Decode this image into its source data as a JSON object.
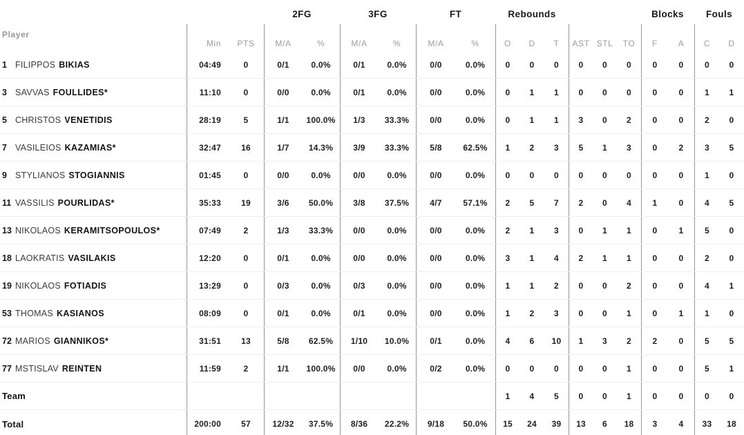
{
  "header": {
    "groups": {
      "fg2": "2FG",
      "fg3": "3FG",
      "ft": "FT",
      "rebounds": "Rebounds",
      "blocks": "Blocks",
      "fouls": "Fouls"
    },
    "columns": {
      "player": "Player",
      "min": "Min",
      "pts": "PTS",
      "fg2_ma": "M/A",
      "fg2_pct": "%",
      "fg3_ma": "M/A",
      "fg3_pct": "%",
      "ft_ma": "M/A",
      "ft_pct": "%",
      "reb_o": "O",
      "reb_d": "D",
      "reb_t": "T",
      "ast": "AST",
      "stl": "STL",
      "to": "TO",
      "blk_f": "F",
      "blk_a": "A",
      "foul_c": "C",
      "foul_d": "D"
    }
  },
  "colors": {
    "header_text": "#9b9b9f",
    "value_text": "#202022",
    "vertical_line": "#949494",
    "horizontal_line": "#efefef"
  },
  "table": {
    "rows": [
      {
        "number": "1",
        "first": "FILIPPOS",
        "last": "BIKIAS",
        "min": "04:49",
        "pts": "0",
        "fg2_ma": "0/1",
        "fg2_pct": "0.0%",
        "fg3_ma": "0/1",
        "fg3_pct": "0.0%",
        "ft_ma": "0/0",
        "ft_pct": "0.0%",
        "reb_o": "0",
        "reb_d": "0",
        "reb_t": "0",
        "ast": "0",
        "stl": "0",
        "to": "0",
        "blk_f": "0",
        "blk_a": "0",
        "foul_c": "0",
        "foul_d": "0"
      },
      {
        "number": "3",
        "first": "SAVVAS",
        "last": "FOULLIDES*",
        "min": "11:10",
        "pts": "0",
        "fg2_ma": "0/0",
        "fg2_pct": "0.0%",
        "fg3_ma": "0/1",
        "fg3_pct": "0.0%",
        "ft_ma": "0/0",
        "ft_pct": "0.0%",
        "reb_o": "0",
        "reb_d": "1",
        "reb_t": "1",
        "ast": "0",
        "stl": "0",
        "to": "0",
        "blk_f": "0",
        "blk_a": "0",
        "foul_c": "1",
        "foul_d": "1"
      },
      {
        "number": "5",
        "first": "CHRISTOS",
        "last": "VENETIDIS",
        "min": "28:19",
        "pts": "5",
        "fg2_ma": "1/1",
        "fg2_pct": "100.0%",
        "fg3_ma": "1/3",
        "fg3_pct": "33.3%",
        "ft_ma": "0/0",
        "ft_pct": "0.0%",
        "reb_o": "0",
        "reb_d": "1",
        "reb_t": "1",
        "ast": "3",
        "stl": "0",
        "to": "2",
        "blk_f": "0",
        "blk_a": "0",
        "foul_c": "2",
        "foul_d": "0"
      },
      {
        "number": "7",
        "first": "VASILEIOS",
        "last": "KAZAMIAS*",
        "min": "32:47",
        "pts": "16",
        "fg2_ma": "1/7",
        "fg2_pct": "14.3%",
        "fg3_ma": "3/9",
        "fg3_pct": "33.3%",
        "ft_ma": "5/8",
        "ft_pct": "62.5%",
        "reb_o": "1",
        "reb_d": "2",
        "reb_t": "3",
        "ast": "5",
        "stl": "1",
        "to": "3",
        "blk_f": "0",
        "blk_a": "2",
        "foul_c": "3",
        "foul_d": "5"
      },
      {
        "number": "9",
        "first": "STYLIANOS",
        "last": "STOGIANNIS",
        "min": "01:45",
        "pts": "0",
        "fg2_ma": "0/0",
        "fg2_pct": "0.0%",
        "fg3_ma": "0/0",
        "fg3_pct": "0.0%",
        "ft_ma": "0/0",
        "ft_pct": "0.0%",
        "reb_o": "0",
        "reb_d": "0",
        "reb_t": "0",
        "ast": "0",
        "stl": "0",
        "to": "0",
        "blk_f": "0",
        "blk_a": "0",
        "foul_c": "1",
        "foul_d": "0"
      },
      {
        "number": "11",
        "first": "VASSILIS",
        "last": "POURLIDAS*",
        "min": "35:33",
        "pts": "19",
        "fg2_ma": "3/6",
        "fg2_pct": "50.0%",
        "fg3_ma": "3/8",
        "fg3_pct": "37.5%",
        "ft_ma": "4/7",
        "ft_pct": "57.1%",
        "reb_o": "2",
        "reb_d": "5",
        "reb_t": "7",
        "ast": "2",
        "stl": "0",
        "to": "4",
        "blk_f": "1",
        "blk_a": "0",
        "foul_c": "4",
        "foul_d": "5"
      },
      {
        "number": "13",
        "first": "NIKOLAOS",
        "last": "KERAMITSOPOULOS*",
        "min": "07:49",
        "pts": "2",
        "fg2_ma": "1/3",
        "fg2_pct": "33.3%",
        "fg3_ma": "0/0",
        "fg3_pct": "0.0%",
        "ft_ma": "0/0",
        "ft_pct": "0.0%",
        "reb_o": "2",
        "reb_d": "1",
        "reb_t": "3",
        "ast": "0",
        "stl": "1",
        "to": "1",
        "blk_f": "0",
        "blk_a": "1",
        "foul_c": "5",
        "foul_d": "0"
      },
      {
        "number": "18",
        "first": "LAOKRATIS",
        "last": "VASILAKIS",
        "min": "12:20",
        "pts": "0",
        "fg2_ma": "0/1",
        "fg2_pct": "0.0%",
        "fg3_ma": "0/0",
        "fg3_pct": "0.0%",
        "ft_ma": "0/0",
        "ft_pct": "0.0%",
        "reb_o": "3",
        "reb_d": "1",
        "reb_t": "4",
        "ast": "2",
        "stl": "1",
        "to": "1",
        "blk_f": "0",
        "blk_a": "0",
        "foul_c": "2",
        "foul_d": "0"
      },
      {
        "number": "19",
        "first": "NIKOLAOS",
        "last": "FOTIADIS",
        "min": "13:29",
        "pts": "0",
        "fg2_ma": "0/3",
        "fg2_pct": "0.0%",
        "fg3_ma": "0/3",
        "fg3_pct": "0.0%",
        "ft_ma": "0/0",
        "ft_pct": "0.0%",
        "reb_o": "1",
        "reb_d": "1",
        "reb_t": "2",
        "ast": "0",
        "stl": "0",
        "to": "2",
        "blk_f": "0",
        "blk_a": "0",
        "foul_c": "4",
        "foul_d": "1"
      },
      {
        "number": "53",
        "first": "THOMAS",
        "last": "KASIANOS",
        "min": "08:09",
        "pts": "0",
        "fg2_ma": "0/1",
        "fg2_pct": "0.0%",
        "fg3_ma": "0/1",
        "fg3_pct": "0.0%",
        "ft_ma": "0/0",
        "ft_pct": "0.0%",
        "reb_o": "1",
        "reb_d": "2",
        "reb_t": "3",
        "ast": "0",
        "stl": "0",
        "to": "1",
        "blk_f": "0",
        "blk_a": "1",
        "foul_c": "1",
        "foul_d": "0"
      },
      {
        "number": "72",
        "first": "MARIOS",
        "last": "GIANNIKOS*",
        "min": "31:51",
        "pts": "13",
        "fg2_ma": "5/8",
        "fg2_pct": "62.5%",
        "fg3_ma": "1/10",
        "fg3_pct": "10.0%",
        "ft_ma": "0/1",
        "ft_pct": "0.0%",
        "reb_o": "4",
        "reb_d": "6",
        "reb_t": "10",
        "ast": "1",
        "stl": "3",
        "to": "2",
        "blk_f": "2",
        "blk_a": "0",
        "foul_c": "5",
        "foul_d": "5"
      },
      {
        "number": "77",
        "first": "MSTISLAV",
        "last": "REINTEN",
        "min": "11:59",
        "pts": "2",
        "fg2_ma": "1/1",
        "fg2_pct": "100.0%",
        "fg3_ma": "0/0",
        "fg3_pct": "0.0%",
        "ft_ma": "0/2",
        "ft_pct": "0.0%",
        "reb_o": "0",
        "reb_d": "0",
        "reb_t": "0",
        "ast": "0",
        "stl": "0",
        "to": "1",
        "blk_f": "0",
        "blk_a": "0",
        "foul_c": "5",
        "foul_d": "1"
      },
      {
        "label": "Team",
        "reb_o": "1",
        "reb_d": "4",
        "reb_t": "5",
        "ast": "0",
        "stl": "0",
        "to": "1",
        "blk_f": "0",
        "blk_a": "0",
        "foul_c": "0",
        "foul_d": "0"
      },
      {
        "label": "Total",
        "min": "200:00",
        "pts": "57",
        "fg2_ma": "12/32",
        "fg2_pct": "37.5%",
        "fg3_ma": "8/36",
        "fg3_pct": "22.2%",
        "ft_ma": "9/18",
        "ft_pct": "50.0%",
        "reb_o": "15",
        "reb_d": "24",
        "reb_t": "39",
        "ast": "13",
        "stl": "6",
        "to": "18",
        "blk_f": "3",
        "blk_a": "4",
        "foul_c": "33",
        "foul_d": "18"
      }
    ]
  }
}
